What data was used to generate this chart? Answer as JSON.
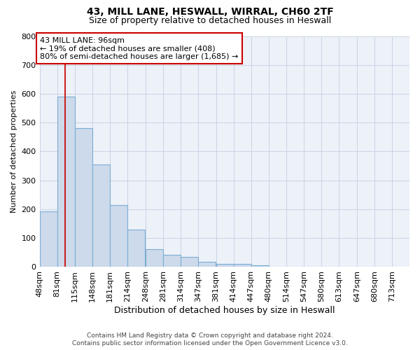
{
  "title_line1": "43, MILL LANE, HESWALL, WIRRAL, CH60 2TF",
  "title_line2": "Size of property relative to detached houses in Heswall",
  "xlabel": "Distribution of detached houses by size in Heswall",
  "ylabel": "Number of detached properties",
  "bin_labels": [
    "48sqm",
    "81sqm",
    "115sqm",
    "148sqm",
    "181sqm",
    "214sqm",
    "248sqm",
    "281sqm",
    "314sqm",
    "347sqm",
    "381sqm",
    "414sqm",
    "447sqm",
    "480sqm",
    "514sqm",
    "547sqm",
    "580sqm",
    "613sqm",
    "647sqm",
    "680sqm",
    "713sqm"
  ],
  "bin_edges": [
    48,
    81,
    115,
    148,
    181,
    214,
    248,
    281,
    314,
    347,
    381,
    414,
    447,
    480,
    514,
    547,
    580,
    613,
    647,
    680,
    713
  ],
  "bar_values": [
    193,
    590,
    480,
    355,
    215,
    130,
    62,
    43,
    36,
    18,
    10,
    12,
    5,
    0,
    0,
    0,
    0,
    0,
    0,
    0
  ],
  "bar_color": "#cddaeb",
  "bar_edgecolor": "#7aadd4",
  "red_line_x": 96,
  "ylim": [
    0,
    800
  ],
  "yticks": [
    0,
    100,
    200,
    300,
    400,
    500,
    600,
    700,
    800
  ],
  "annotation_text": "43 MILL LANE: 96sqm\n← 19% of detached houses are smaller (408)\n80% of semi-detached houses are larger (1,685) →",
  "annotation_box_color": "#ffffff",
  "annotation_box_edgecolor": "#cc0000",
  "footer_line1": "Contains HM Land Registry data © Crown copyright and database right 2024.",
  "footer_line2": "Contains public sector information licensed under the Open Government Licence v3.0.",
  "background_color": "#ffffff",
  "grid_color": "#c8d4e4",
  "ax_facecolor": "#edf1f8"
}
